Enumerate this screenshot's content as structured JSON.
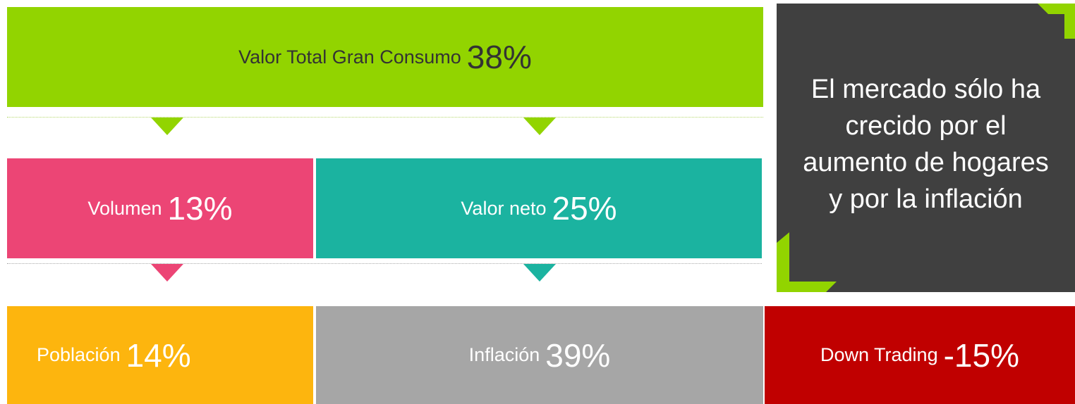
{
  "top": {
    "label": "Valor Total Gran Consumo",
    "value": "38%"
  },
  "middle": [
    {
      "label": "Volumen",
      "value": "13%"
    },
    {
      "label": "Valor neto",
      "value": "25%"
    }
  ],
  "bottom": [
    {
      "label": "Población",
      "value": "14%"
    },
    {
      "label": "Inflación",
      "value": "39%"
    },
    {
      "label": "Down Trading",
      "value": "-15%"
    }
  ],
  "note": {
    "lines": [
      "El mercado sólo ha",
      "crecido por el",
      "aumento de hogares",
      "y por la inflación"
    ]
  }
}
